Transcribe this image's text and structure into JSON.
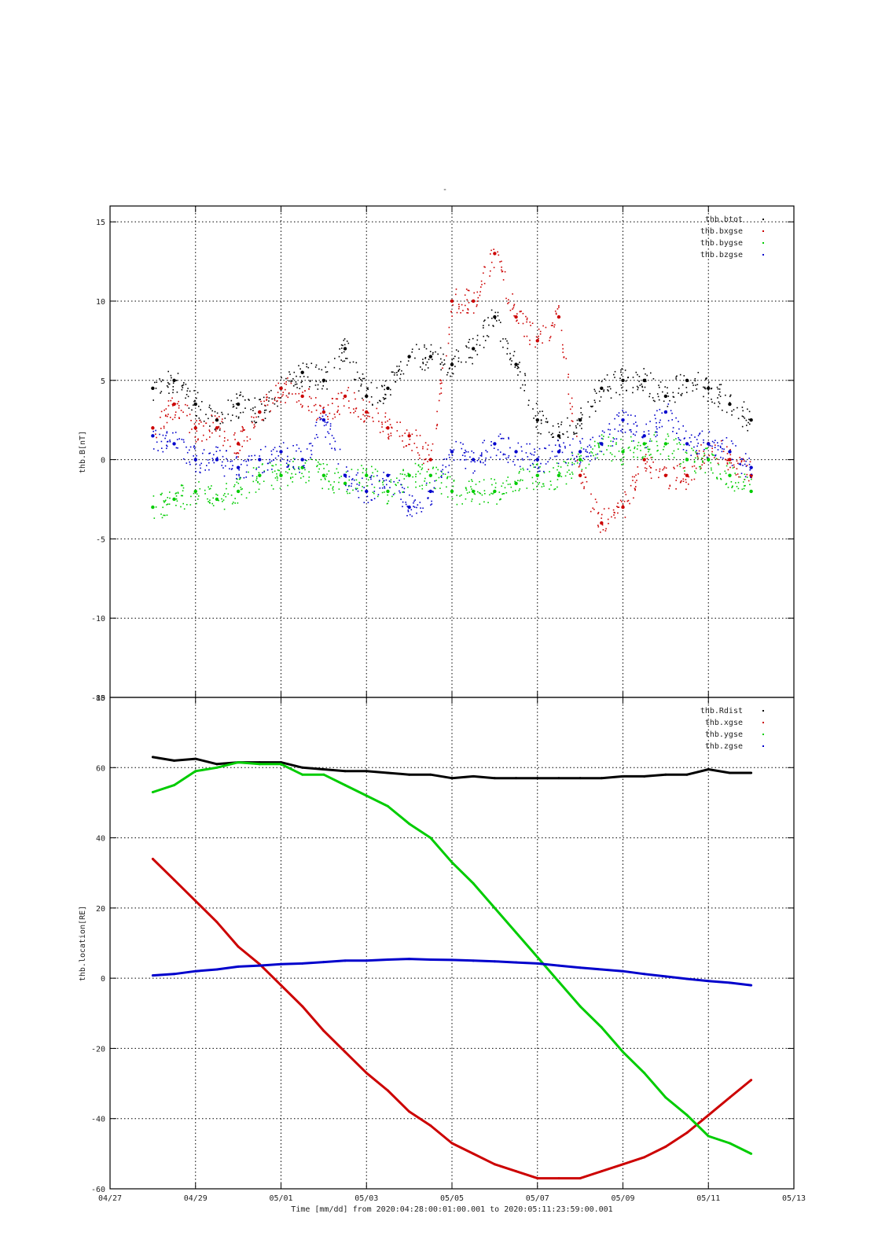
{
  "top_title": "-",
  "x_caption": "Time [mm/dd]  from 2020:04:28:00:01:00.001  to  2020:05:11:23:59:00.001",
  "x_ticks": [
    "04/27",
    "04/29",
    "05/01",
    "05/03",
    "05/05",
    "05/07",
    "05/09",
    "05/11",
    "05/13"
  ],
  "colors": {
    "btot": "#000000",
    "x": "#cc0000",
    "y": "#00cc00",
    "z": "#0000cc"
  },
  "chart_data": [
    {
      "type": "scatter",
      "ylabel": "thb.B[nT]",
      "xlim": [
        "04/27",
        "05/13"
      ],
      "ylim": [
        -15,
        16
      ],
      "y_ticks": [
        15,
        10,
        5,
        0,
        -5,
        -10,
        -15
      ],
      "grid": true,
      "legend": "top-right",
      "x": [
        "04/28",
        "04/28.5",
        "04/29",
        "04/29.5",
        "04/30",
        "04/30.5",
        "05/01",
        "05/01.5",
        "05/02",
        "05/02.5",
        "05/03",
        "05/03.5",
        "05/04",
        "05/04.5",
        "05/05",
        "05/05.5",
        "05/06",
        "05/06.5",
        "05/07",
        "05/07.5",
        "05/08",
        "05/08.5",
        "05/09",
        "05/09.5",
        "05/10",
        "05/10.5",
        "05/11",
        "05/11.5",
        "05/12"
      ],
      "series": [
        {
          "name": "thb.btot",
          "color": "#000000",
          "values": [
            4.5,
            5,
            3.5,
            2.5,
            3.5,
            3,
            4.5,
            5.5,
            5,
            7,
            4,
            4.5,
            6.5,
            6.5,
            6,
            7,
            9,
            6,
            2.5,
            1.5,
            2.5,
            4.5,
            5,
            5,
            4,
            5,
            4.5,
            3.5,
            2.5
          ]
        },
        {
          "name": "thb.bxgse",
          "color": "#cc0000",
          "values": [
            2,
            3.5,
            2,
            2,
            1,
            3,
            4.5,
            4,
            3,
            4,
            3,
            2,
            1.5,
            0,
            10,
            10,
            13,
            9,
            7.5,
            9,
            -1,
            -4,
            -3,
            0,
            -1,
            -1,
            1,
            0,
            -1
          ]
        },
        {
          "name": "thb.bygse",
          "color": "#00cc00",
          "values": [
            -3,
            -2.5,
            -2,
            -2.5,
            -2,
            -1,
            -1,
            -0.5,
            -1,
            -1.5,
            -1,
            -2,
            -1,
            -1,
            -2,
            -2,
            -2,
            -1.5,
            -1,
            -1,
            0,
            1,
            0.5,
            1,
            1,
            0,
            0,
            -1,
            -2
          ]
        },
        {
          "name": "thb.bzgse",
          "color": "#0000cc",
          "values": [
            1.5,
            1,
            0,
            0,
            -0.5,
            0,
            0.5,
            0,
            2.5,
            -1,
            -2,
            -1,
            -3,
            -2,
            0.5,
            0,
            1,
            0.5,
            0,
            0.5,
            0.5,
            1,
            2.5,
            1.5,
            3,
            1,
            1,
            0.5,
            -0.5
          ]
        }
      ]
    },
    {
      "type": "line",
      "ylabel": "thb.location[RE]",
      "xlim": [
        "04/27",
        "05/13"
      ],
      "ylim": [
        -60,
        80
      ],
      "y_ticks": [
        80,
        60,
        40,
        20,
        0,
        -20,
        -40,
        -60
      ],
      "grid": true,
      "legend": "top-right",
      "x": [
        "04/28",
        "04/28.5",
        "04/29",
        "04/29.5",
        "04/30",
        "04/30.5",
        "05/01",
        "05/01.5",
        "05/02",
        "05/02.5",
        "05/03",
        "05/03.5",
        "05/04",
        "05/04.5",
        "05/05",
        "05/05.5",
        "05/06",
        "05/06.5",
        "05/07",
        "05/07.5",
        "05/08",
        "05/08.5",
        "05/09",
        "05/09.5",
        "05/10",
        "05/10.5",
        "05/11",
        "05/11.5",
        "05/12"
      ],
      "series": [
        {
          "name": "thb.Rdist",
          "color": "#000000",
          "values": [
            63,
            62,
            62.5,
            61,
            61.5,
            61.5,
            61.5,
            60,
            59.5,
            59,
            59,
            58.5,
            58,
            58,
            57,
            57.5,
            57,
            57,
            57,
            57,
            57,
            57,
            57.5,
            57.5,
            58,
            58,
            59.5,
            58.5,
            58.5
          ]
        },
        {
          "name": "thb.xgse",
          "color": "#cc0000",
          "values": [
            34,
            28,
            22,
            16,
            9,
            4,
            -2,
            -8,
            -15,
            -21,
            -27,
            -32,
            -38,
            -42,
            -47,
            -50,
            -53,
            -55,
            -57,
            -57,
            -57,
            -55,
            -53,
            -51,
            -48,
            -44,
            -39,
            -34,
            -29
          ]
        },
        {
          "name": "thb.ygse",
          "color": "#00cc00",
          "values": [
            53,
            55,
            59,
            60,
            61.5,
            61,
            61,
            58,
            58,
            55,
            52,
            49,
            44,
            40,
            33,
            27,
            20,
            13,
            6,
            -1,
            -8,
            -14,
            -21,
            -27,
            -34,
            -39,
            -45,
            -47,
            -50
          ]
        },
        {
          "name": "thb.zgse",
          "color": "#0000cc",
          "values": [
            0.8,
            1.2,
            2,
            2.5,
            3.3,
            3.6,
            4,
            4.2,
            4.6,
            5,
            5,
            5.3,
            5.5,
            5.3,
            5.2,
            5,
            4.8,
            4.5,
            4.2,
            3.6,
            3,
            2.5,
            2,
            1.2,
            0.5,
            -0.2,
            -0.8,
            -1.3,
            -2
          ]
        }
      ]
    }
  ]
}
